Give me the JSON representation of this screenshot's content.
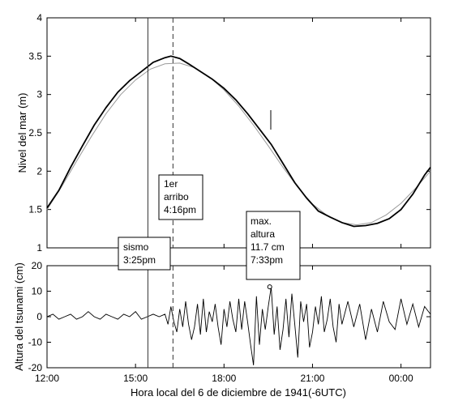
{
  "chart_data": [
    {
      "type": "line",
      "ylabel": "Nivel del mar (m)",
      "xlim": [
        12.0,
        25.0
      ],
      "ylim": [
        1,
        4
      ],
      "yticks": [
        1,
        1.5,
        2,
        2.5,
        3,
        3.5,
        4
      ],
      "grid": false,
      "series": [
        {
          "style": "observed, thick black",
          "x": [
            12.0,
            12.4,
            12.8,
            13.2,
            13.6,
            14.0,
            14.4,
            14.8,
            15.2,
            15.6,
            16.0,
            16.2,
            16.5,
            16.8,
            17.2,
            17.6,
            18.0,
            18.4,
            18.8,
            19.2,
            19.6,
            20.0,
            20.4,
            20.8,
            21.2,
            21.6,
            22.0,
            22.4,
            22.8,
            23.2,
            23.6,
            24.0,
            24.4,
            24.8,
            25.0
          ],
          "values": [
            1.52,
            1.75,
            2.05,
            2.33,
            2.6,
            2.83,
            3.03,
            3.18,
            3.3,
            3.42,
            3.48,
            3.5,
            3.47,
            3.4,
            3.3,
            3.2,
            3.08,
            2.93,
            2.75,
            2.55,
            2.35,
            2.1,
            1.85,
            1.65,
            1.48,
            1.4,
            1.33,
            1.28,
            1.29,
            1.32,
            1.38,
            1.5,
            1.7,
            1.95,
            2.05
          ]
        },
        {
          "style": "tidal fit, thin gray",
          "x": [
            12.0,
            12.5,
            13.0,
            13.5,
            14.0,
            14.5,
            15.0,
            15.5,
            16.0,
            16.5,
            17.0,
            17.5,
            18.0,
            18.5,
            19.0,
            19.5,
            20.0,
            20.5,
            21.0,
            21.5,
            22.0,
            22.5,
            23.0,
            23.5,
            24.0,
            24.5,
            25.0
          ],
          "values": [
            1.5,
            1.8,
            2.13,
            2.45,
            2.75,
            3.0,
            3.19,
            3.33,
            3.4,
            3.41,
            3.35,
            3.23,
            3.06,
            2.85,
            2.6,
            2.33,
            2.05,
            1.79,
            1.57,
            1.42,
            1.33,
            1.3,
            1.33,
            1.43,
            1.58,
            1.78,
            2.0
          ]
        }
      ]
    },
    {
      "type": "line",
      "xlabel": "Hora local del 6 de diciembre de 1941(-6UTC)",
      "ylabel": "Altura del tsunami (cm)",
      "xlim": [
        12.0,
        25.0
      ],
      "ylim": [
        -20,
        20
      ],
      "yticks": [
        -20,
        -10,
        0,
        10,
        20
      ],
      "xticks": [
        12,
        15,
        18,
        21,
        24
      ],
      "xtick_labels": [
        "12:00",
        "15:00",
        "18:00",
        "21:00",
        "00:00"
      ],
      "grid": false,
      "series": [
        {
          "x": [
            12.0,
            12.2,
            12.4,
            12.6,
            12.8,
            13.0,
            13.2,
            13.4,
            13.6,
            13.8,
            14.0,
            14.2,
            14.4,
            14.6,
            14.8,
            15.0,
            15.2,
            15.4,
            15.6,
            15.8,
            16.0,
            16.1,
            16.2,
            16.3,
            16.4,
            16.5,
            16.6,
            16.7,
            16.8,
            16.9,
            17.0,
            17.1,
            17.2,
            17.3,
            17.4,
            17.5,
            17.6,
            17.7,
            17.8,
            17.9,
            18.0,
            18.1,
            18.2,
            18.3,
            18.4,
            18.5,
            18.6,
            18.7,
            18.8,
            18.9,
            19.0,
            19.1,
            19.2,
            19.3,
            19.4,
            19.5,
            19.6,
            19.7,
            19.8,
            19.9,
            20.0,
            20.1,
            20.2,
            20.3,
            20.4,
            20.5,
            20.6,
            20.7,
            20.8,
            20.9,
            21.0,
            21.1,
            21.2,
            21.3,
            21.4,
            21.5,
            21.6,
            21.7,
            21.8,
            21.9,
            22.0,
            22.2,
            22.4,
            22.6,
            22.8,
            23.0,
            23.2,
            23.4,
            23.6,
            23.8,
            24.0,
            24.2,
            24.4,
            24.6,
            24.8,
            25.0
          ],
          "values": [
            0,
            1,
            -1,
            0,
            1,
            -1,
            0,
            2,
            0,
            -1,
            1,
            0,
            -1,
            1,
            0,
            2,
            -1,
            0,
            1,
            0,
            1,
            -3,
            4,
            -2,
            -6,
            3,
            -4,
            6,
            -3,
            -9,
            -4,
            5,
            -7,
            7,
            -6,
            2,
            -2,
            5,
            -4,
            -11,
            3,
            -4,
            6,
            -1,
            -6,
            7,
            -5,
            6,
            -2,
            -11,
            -19,
            8,
            -11,
            3,
            -5,
            4,
            11.7,
            -7,
            4,
            -13,
            -5,
            7,
            -8,
            9,
            -3,
            -16,
            6,
            -2,
            5,
            -12,
            -6,
            4,
            -3,
            8,
            -6,
            -1,
            7,
            -4,
            -10,
            5,
            -3,
            6,
            -4,
            5,
            -9,
            3,
            -6,
            6,
            -2,
            -5,
            7,
            -3,
            5,
            -4,
            4,
            1
          ]
        }
      ],
      "max_marker": {
        "x": 19.55,
        "y": 11.7
      }
    }
  ],
  "markers": {
    "sismo_time": 15.42,
    "arrival_time": 16.27
  },
  "annotations": {
    "sismo": [
      "sismo",
      "3:25pm"
    ],
    "arrival": [
      "1er",
      "arribo",
      "4:16pm"
    ],
    "max": [
      "max.",
      "altura",
      "11.7 cm",
      "7:33pm"
    ]
  }
}
